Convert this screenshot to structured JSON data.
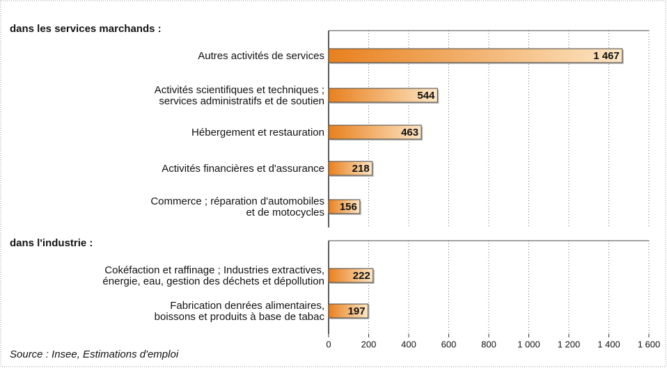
{
  "chart_data": {
    "type": "bar",
    "orientation": "horizontal",
    "color": [
      "#e8801e",
      "#fde6c4"
    ],
    "grid": true,
    "xlim": [
      0,
      1600
    ],
    "xticks": [
      0,
      200,
      400,
      600,
      800,
      {
        "value": 1000,
        "label": "1 000"
      },
      {
        "value": 1200,
        "label": "1 200"
      },
      {
        "value": 1400,
        "label": "1 400"
      },
      {
        "value": 1600,
        "label": "1 600"
      }
    ],
    "groups": [
      {
        "title": "dans les services marchands :",
        "categories": [
          [
            "Autres activités de services"
          ],
          [
            "Activités scientifiques et techniques ;",
            "services administratifs et de soutien"
          ],
          [
            "Hébergement et restauration"
          ],
          [
            "Activités financières et d'assurance"
          ],
          [
            "Commerce ; réparation d'automobiles",
            "et de motocycles"
          ]
        ],
        "values": [
          1467,
          544,
          463,
          218,
          156
        ],
        "value_labels": [
          "1 467",
          "544",
          "463",
          "218",
          "156"
        ]
      },
      {
        "title": "dans l'industrie :",
        "categories": [
          [
            "Cokéfaction et raffinage ; Industries extractives,",
            "énergie, eau, gestion des déchets et dépollution"
          ],
          [
            "Fabrication denrées alimentaires,",
            "boissons et produits à base de tabac"
          ]
        ],
        "values": [
          222,
          197
        ],
        "value_labels": [
          "222",
          "197"
        ]
      }
    ],
    "source": "Source : Insee, Estimations d'emploi"
  }
}
